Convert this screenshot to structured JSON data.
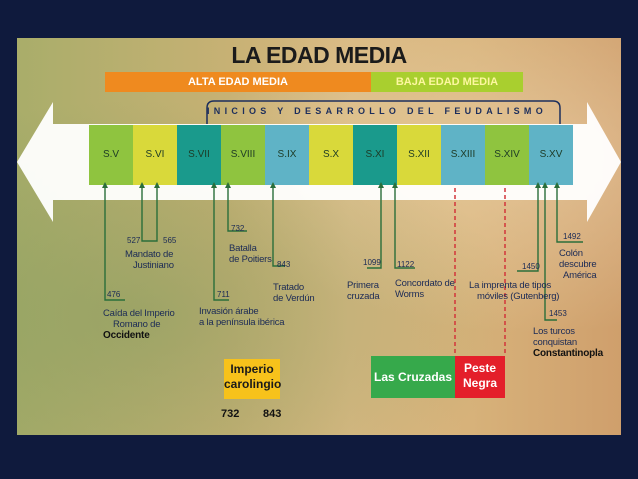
{
  "title": "LA EDAD MEDIA",
  "bands": {
    "alta": "ALTA EDAD MEDIA",
    "baja": "BAJA EDAD MEDIA"
  },
  "feudalismo": "INICIOS Y DESARROLLO DEL FEUDALISMO",
  "centuries": [
    {
      "label": "S.V",
      "color": "#8fc43f"
    },
    {
      "label": "S.VI",
      "color": "#d9d93a"
    },
    {
      "label": "S.VII",
      "color": "#1a9a8c"
    },
    {
      "label": "S.VIII",
      "color": "#8fc43f"
    },
    {
      "label": "S.IX",
      "color": "#5fb3c6"
    },
    {
      "label": "S.X",
      "color": "#d9d93a"
    },
    {
      "label": "S.XI",
      "color": "#1a9a8c"
    },
    {
      "label": "S.XII",
      "color": "#d9d93a"
    },
    {
      "label": "S.XIII",
      "color": "#5fb3c6"
    },
    {
      "label": "S.XIV",
      "color": "#8fc43f"
    },
    {
      "label": "S.XV",
      "color": "#5fb3c6"
    }
  ],
  "events": {
    "e476": {
      "year": "476",
      "l1": "Caída del Imperio",
      "l2": "Romano de",
      "l3": "Occidente"
    },
    "e527": {
      "year1": "527",
      "year2": "565",
      "l1": "Mandato de",
      "l2": "Justiniano"
    },
    "e732": {
      "year": "732",
      "l1": "Batalla",
      "l2": "de Poitiers"
    },
    "e711": {
      "year": "711",
      "l1": "Invasión árabe",
      "l2": "a la península ibérica"
    },
    "e843": {
      "year": "843",
      "l1": "Tratado",
      "l2": "de Verdún"
    },
    "e1099": {
      "year": "1099",
      "l1": "Primera",
      "l2": "cruzada"
    },
    "e1122": {
      "year": "1122",
      "l1": "Concordato de",
      "l2": "Worms"
    },
    "e1450": {
      "year": "1450",
      "l1": "La imprenta de tipos",
      "l2": "móviles (Gutenberg)"
    },
    "e1492": {
      "year": "1492",
      "l1": "Colón descubre",
      "l2": "América"
    },
    "e1453": {
      "year": "1453",
      "l1": "Los turcos conquistan",
      "l2": "Constantinopla"
    }
  },
  "boxes": {
    "imperio_l1": "Imperio",
    "imperio_l2": "carolingio",
    "imperio_y1": "732",
    "imperio_y2": "843",
    "cruzadas": "Las Cruzadas",
    "peste_l1": "Peste",
    "peste_l2": "Negra"
  },
  "colors": {
    "background": "#0f1a3d",
    "alta": "#ef8a1f",
    "baja": "#a9cf2f",
    "cruzadas": "#36a94b",
    "peste": "#e41f2a",
    "imperio": "#f7c21b"
  }
}
